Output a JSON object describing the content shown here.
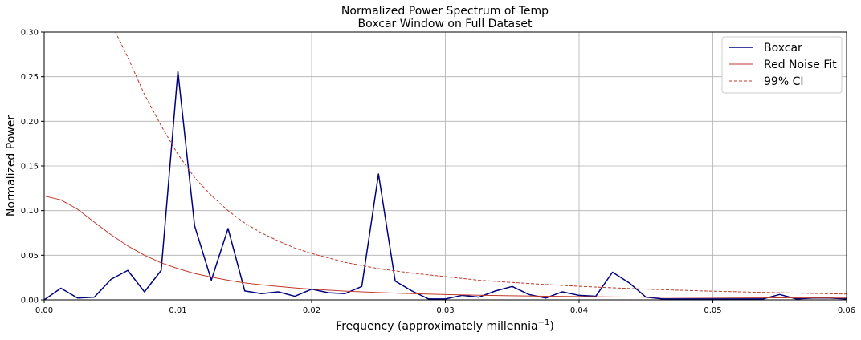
{
  "chart_data": {
    "type": "line",
    "title": "Normalized Power Spectrum of Temp",
    "subtitle": "Boxcar Window on Full Dataset",
    "xlabel_main": "Frequency (approximately millennia",
    "xlabel_sup": "−1",
    "xlabel_close": ")",
    "ylabel": "Normalized Power",
    "xlim": [
      0,
      0.06
    ],
    "ylim": [
      0,
      0.3
    ],
    "xticks": [
      "0.00",
      "0.01",
      "0.02",
      "0.03",
      "0.04",
      "0.05",
      "0.06"
    ],
    "yticks": [
      "0.00",
      "0.05",
      "0.10",
      "0.15",
      "0.20",
      "0.25",
      "0.30"
    ],
    "grid": true,
    "legend_position": "top-right",
    "series": [
      {
        "name": "Boxcar",
        "color": "#00007f",
        "style": "solid",
        "x": [
          0,
          0.00125,
          0.0025,
          0.00375,
          0.005,
          0.00625,
          0.0075,
          0.00875,
          0.01,
          0.01125,
          0.0125,
          0.01375,
          0.015,
          0.01625,
          0.0175,
          0.01875,
          0.02,
          0.02125,
          0.0225,
          0.02375,
          0.025,
          0.02625,
          0.0275,
          0.02875,
          0.03,
          0.03125,
          0.0325,
          0.03375,
          0.035,
          0.03625,
          0.0375,
          0.03875,
          0.04,
          0.04125,
          0.0425,
          0.04375,
          0.045,
          0.04625,
          0.0475,
          0.04875,
          0.05,
          0.05125,
          0.0525,
          0.05375,
          0.055,
          0.05625,
          0.0575,
          0.05875,
          0.06
        ],
        "y": [
          0.0,
          0.013,
          0.002,
          0.003,
          0.023,
          0.033,
          0.009,
          0.033,
          0.256,
          0.083,
          0.022,
          0.08,
          0.01,
          0.007,
          0.009,
          0.004,
          0.012,
          0.008,
          0.007,
          0.015,
          0.141,
          0.021,
          0.01,
          0.001,
          0.001,
          0.005,
          0.003,
          0.01,
          0.015,
          0.006,
          0.002,
          0.009,
          0.005,
          0.004,
          0.031,
          0.019,
          0.003,
          0.001,
          0.001,
          0.001,
          0.001,
          0.001,
          0.001,
          0.001,
          0.006,
          0.001,
          0.002,
          0.002,
          0.001
        ]
      },
      {
        "name": "Red Noise Fit",
        "color": "#c0392b",
        "style": "solid",
        "x": [
          0,
          0.00125,
          0.0025,
          0.00375,
          0.005,
          0.00625,
          0.0075,
          0.00875,
          0.01,
          0.01125,
          0.0125,
          0.01375,
          0.015,
          0.01625,
          0.0175,
          0.01875,
          0.02,
          0.0225,
          0.025,
          0.0275,
          0.03,
          0.0325,
          0.035,
          0.0375,
          0.04,
          0.0425,
          0.045,
          0.0475,
          0.05,
          0.0525,
          0.055,
          0.0575,
          0.06
        ],
        "y": [
          0.1165,
          0.112,
          0.1015,
          0.087,
          0.073,
          0.0605,
          0.05,
          0.0415,
          0.035,
          0.0295,
          0.0255,
          0.022,
          0.019,
          0.0168,
          0.015,
          0.0134,
          0.012,
          0.0098,
          0.0082,
          0.007,
          0.006,
          0.0052,
          0.0046,
          0.0041,
          0.0037,
          0.0033,
          0.003,
          0.0028,
          0.0026,
          0.0024,
          0.0022,
          0.0021,
          0.002
        ]
      },
      {
        "name": "99% CI",
        "color": "#c0392b",
        "style": "dashed",
        "x": [
          0.005,
          0.00625,
          0.0075,
          0.00875,
          0.01,
          0.01125,
          0.0125,
          0.01375,
          0.015,
          0.01625,
          0.0175,
          0.01875,
          0.02,
          0.0225,
          0.025,
          0.0275,
          0.03,
          0.0325,
          0.035,
          0.0375,
          0.04,
          0.0425,
          0.045,
          0.0475,
          0.05,
          0.0525,
          0.055,
          0.0575,
          0.06
        ],
        "y": [
          0.31,
          0.272,
          0.23,
          0.195,
          0.163,
          0.137,
          0.117,
          0.1,
          0.086,
          0.075,
          0.066,
          0.058,
          0.052,
          0.042,
          0.035,
          0.03,
          0.026,
          0.022,
          0.0195,
          0.0172,
          0.0152,
          0.0135,
          0.012,
          0.0108,
          0.0097,
          0.0088,
          0.008,
          0.0072,
          0.0065
        ]
      }
    ]
  }
}
